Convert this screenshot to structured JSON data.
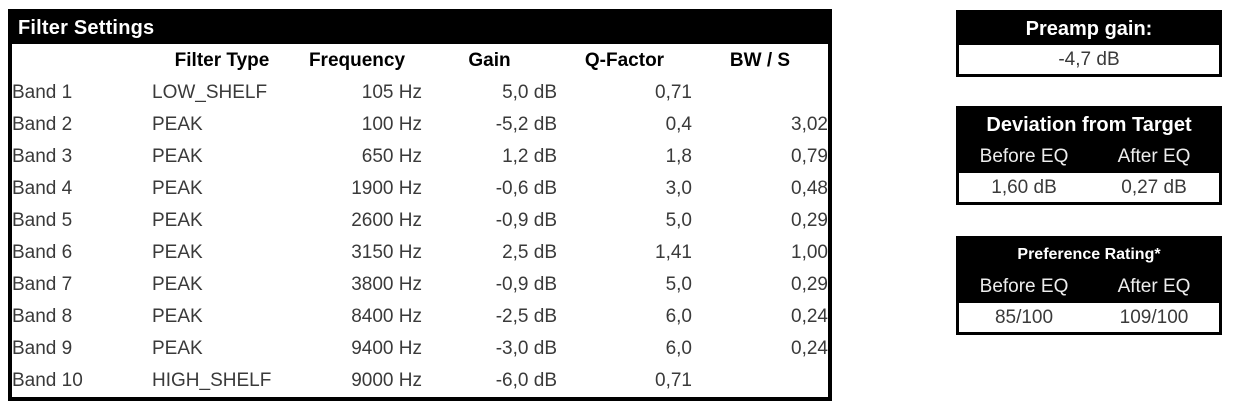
{
  "filter_table": {
    "title": "Filter Settings",
    "headers": {
      "band": "",
      "type": "Filter Type",
      "frequency": "Frequency",
      "gain": "Gain",
      "q_factor": "Q-Factor",
      "bw_s": "BW / S"
    },
    "rows": [
      {
        "band": "Band 1",
        "type": "LOW_SHELF",
        "frequency": "105 Hz",
        "gain": "5,0 dB",
        "q_factor": "0,71",
        "bw_s": ""
      },
      {
        "band": "Band 2",
        "type": "PEAK",
        "frequency": "100 Hz",
        "gain": "-5,2 dB",
        "q_factor": "0,4",
        "bw_s": "3,02"
      },
      {
        "band": "Band 3",
        "type": "PEAK",
        "frequency": "650 Hz",
        "gain": "1,2 dB",
        "q_factor": "1,8",
        "bw_s": "0,79"
      },
      {
        "band": "Band 4",
        "type": "PEAK",
        "frequency": "1900 Hz",
        "gain": "-0,6 dB",
        "q_factor": "3,0",
        "bw_s": "0,48"
      },
      {
        "band": "Band 5",
        "type": "PEAK",
        "frequency": "2600 Hz",
        "gain": "-0,9 dB",
        "q_factor": "5,0",
        "bw_s": "0,29"
      },
      {
        "band": "Band 6",
        "type": "PEAK",
        "frequency": "3150 Hz",
        "gain": "2,5 dB",
        "q_factor": "1,41",
        "bw_s": "1,00"
      },
      {
        "band": "Band 7",
        "type": "PEAK",
        "frequency": "3800 Hz",
        "gain": "-0,9 dB",
        "q_factor": "5,0",
        "bw_s": "0,29"
      },
      {
        "band": "Band 8",
        "type": "PEAK",
        "frequency": "8400 Hz",
        "gain": "-2,5 dB",
        "q_factor": "6,0",
        "bw_s": "0,24"
      },
      {
        "band": "Band 9",
        "type": "PEAK",
        "frequency": "9400 Hz",
        "gain": "-3,0 dB",
        "q_factor": "6,0",
        "bw_s": "0,24"
      },
      {
        "band": "Band 10",
        "type": "HIGH_SHELF",
        "frequency": "9000 Hz",
        "gain": "-6,0 dB",
        "q_factor": "0,71",
        "bw_s": ""
      }
    ]
  },
  "preamp": {
    "title": "Preamp gain:",
    "value": "-4,7 dB"
  },
  "deviation": {
    "title": "Deviation from Target",
    "before_label": "Before EQ",
    "after_label": "After EQ",
    "before_value": "1,60 dB",
    "after_value": "0,27 dB"
  },
  "preference": {
    "title": "Preference Rating*",
    "before_label": "Before EQ",
    "after_label": "After EQ",
    "before_value": "85/100",
    "after_value": "109/100"
  },
  "colors": {
    "panel_bg": "#000000",
    "panel_text": "#ffffff",
    "value_text": "#3a3a3a"
  }
}
